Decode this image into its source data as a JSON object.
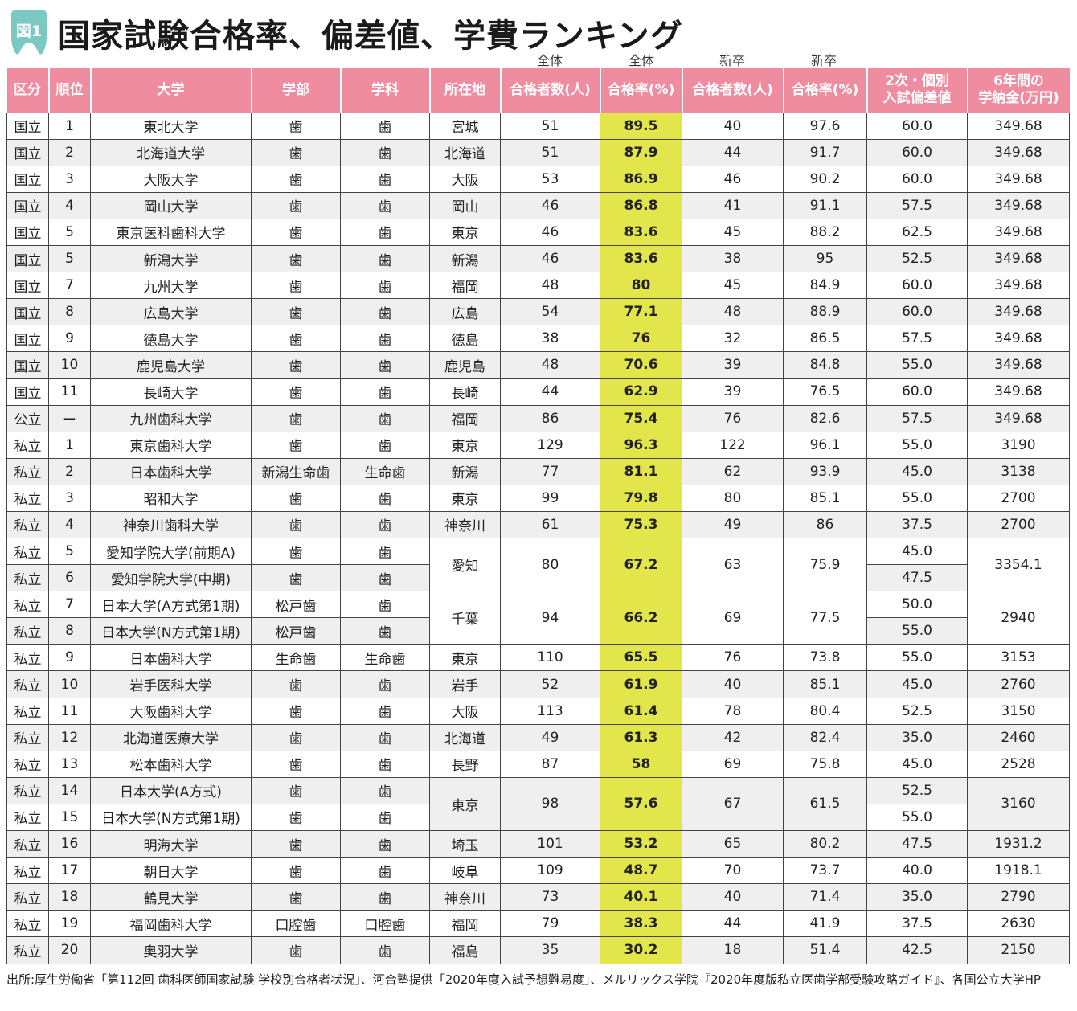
{
  "header": {
    "badge": "図1",
    "title": "国家試験合格率、偏差値、学費ランキング"
  },
  "subheaders": {
    "all1": "全体",
    "all2": "全体",
    "new1": "新卒",
    "new2": "新卒"
  },
  "columns": [
    "区分",
    "順位",
    "大学",
    "学部",
    "学科",
    "所在地",
    "合格者数(人)",
    "合格率(%)",
    "合格者数(人)",
    "合格率(%)",
    "2次・個別|入試偏差値",
    "6年間の|学納金(万円)"
  ],
  "rows": [
    {
      "kubun": "国立",
      "rank": "1",
      "univ": "東北大学",
      "fac": "歯",
      "dept": "歯",
      "loc": "宮城",
      "pass": "51",
      "rate": "89.5",
      "npass": "40",
      "nrate": "97.6",
      "dev": "60.0",
      "fee": "349.68"
    },
    {
      "kubun": "国立",
      "rank": "2",
      "univ": "北海道大学",
      "fac": "歯",
      "dept": "歯",
      "loc": "北海道",
      "pass": "51",
      "rate": "87.9",
      "npass": "44",
      "nrate": "91.7",
      "dev": "60.0",
      "fee": "349.68"
    },
    {
      "kubun": "国立",
      "rank": "3",
      "univ": "大阪大学",
      "fac": "歯",
      "dept": "歯",
      "loc": "大阪",
      "pass": "53",
      "rate": "86.9",
      "npass": "46",
      "nrate": "90.2",
      "dev": "60.0",
      "fee": "349.68"
    },
    {
      "kubun": "国立",
      "rank": "4",
      "univ": "岡山大学",
      "fac": "歯",
      "dept": "歯",
      "loc": "岡山",
      "pass": "46",
      "rate": "86.8",
      "npass": "41",
      "nrate": "91.1",
      "dev": "57.5",
      "fee": "349.68"
    },
    {
      "kubun": "国立",
      "rank": "5",
      "univ": "東京医科歯科大学",
      "fac": "歯",
      "dept": "歯",
      "loc": "東京",
      "pass": "46",
      "rate": "83.6",
      "npass": "45",
      "nrate": "88.2",
      "dev": "62.5",
      "fee": "349.68"
    },
    {
      "kubun": "国立",
      "rank": "5",
      "univ": "新潟大学",
      "fac": "歯",
      "dept": "歯",
      "loc": "新潟",
      "pass": "46",
      "rate": "83.6",
      "npass": "38",
      "nrate": "95",
      "dev": "52.5",
      "fee": "349.68"
    },
    {
      "kubun": "国立",
      "rank": "7",
      "univ": "九州大学",
      "fac": "歯",
      "dept": "歯",
      "loc": "福岡",
      "pass": "48",
      "rate": "80",
      "npass": "45",
      "nrate": "84.9",
      "dev": "60.0",
      "fee": "349.68"
    },
    {
      "kubun": "国立",
      "rank": "8",
      "univ": "広島大学",
      "fac": "歯",
      "dept": "歯",
      "loc": "広島",
      "pass": "54",
      "rate": "77.1",
      "npass": "48",
      "nrate": "88.9",
      "dev": "60.0",
      "fee": "349.68"
    },
    {
      "kubun": "国立",
      "rank": "9",
      "univ": "徳島大学",
      "fac": "歯",
      "dept": "歯",
      "loc": "徳島",
      "pass": "38",
      "rate": "76",
      "npass": "32",
      "nrate": "86.5",
      "dev": "57.5",
      "fee": "349.68"
    },
    {
      "kubun": "国立",
      "rank": "10",
      "univ": "鹿児島大学",
      "fac": "歯",
      "dept": "歯",
      "loc": "鹿児島",
      "pass": "48",
      "rate": "70.6",
      "npass": "39",
      "nrate": "84.8",
      "dev": "55.0",
      "fee": "349.68"
    },
    {
      "kubun": "国立",
      "rank": "11",
      "univ": "長崎大学",
      "fac": "歯",
      "dept": "歯",
      "loc": "長崎",
      "pass": "44",
      "rate": "62.9",
      "npass": "39",
      "nrate": "76.5",
      "dev": "60.0",
      "fee": "349.68"
    },
    {
      "kubun": "公立",
      "rank": "ー",
      "univ": "九州歯科大学",
      "fac": "歯",
      "dept": "歯",
      "loc": "福岡",
      "pass": "86",
      "rate": "75.4",
      "npass": "76",
      "nrate": "82.6",
      "dev": "57.5",
      "fee": "349.68"
    },
    {
      "kubun": "私立",
      "rank": "1",
      "univ": "東京歯科大学",
      "fac": "歯",
      "dept": "歯",
      "loc": "東京",
      "pass": "129",
      "rate": "96.3",
      "npass": "122",
      "nrate": "96.1",
      "dev": "55.0",
      "fee": "3190"
    },
    {
      "kubun": "私立",
      "rank": "2",
      "univ": "日本歯科大学",
      "fac": "新潟生命歯",
      "dept": "生命歯",
      "loc": "新潟",
      "pass": "77",
      "rate": "81.1",
      "npass": "62",
      "nrate": "93.9",
      "dev": "45.0",
      "fee": "3138"
    },
    {
      "kubun": "私立",
      "rank": "3",
      "univ": "昭和大学",
      "fac": "歯",
      "dept": "歯",
      "loc": "東京",
      "pass": "99",
      "rate": "79.8",
      "npass": "80",
      "nrate": "85.1",
      "dev": "55.0",
      "fee": "2700"
    },
    {
      "kubun": "私立",
      "rank": "4",
      "univ": "神奈川歯科大学",
      "fac": "歯",
      "dept": "歯",
      "loc": "神奈川",
      "pass": "61",
      "rate": "75.3",
      "npass": "49",
      "nrate": "86",
      "dev": "37.5",
      "fee": "2700"
    },
    {
      "kubun": "私立",
      "rank": "5",
      "univ": "愛知学院大学(前期A)",
      "fac": "歯",
      "dept": "歯",
      "loc": "愛知",
      "pass": "80",
      "rate": "67.2",
      "npass": "63",
      "nrate": "75.9",
      "dev": "45.0",
      "fee": "3354.1",
      "span": 2
    },
    {
      "kubun": "私立",
      "rank": "6",
      "univ": "愛知学院大学(中期)",
      "fac": "歯",
      "dept": "歯",
      "dev": "47.5",
      "cont": true
    },
    {
      "kubun": "私立",
      "rank": "7",
      "univ": "日本大学(A方式第1期)",
      "fac": "松戸歯",
      "dept": "歯",
      "loc": "千葉",
      "pass": "94",
      "rate": "66.2",
      "npass": "69",
      "nrate": "77.5",
      "dev": "50.0",
      "fee": "2940",
      "span": 2
    },
    {
      "kubun": "私立",
      "rank": "8",
      "univ": "日本大学(N方式第1期)",
      "fac": "松戸歯",
      "dept": "歯",
      "dev": "55.0",
      "cont": true
    },
    {
      "kubun": "私立",
      "rank": "9",
      "univ": "日本歯科大学",
      "fac": "生命歯",
      "dept": "生命歯",
      "loc": "東京",
      "pass": "110",
      "rate": "65.5",
      "npass": "76",
      "nrate": "73.8",
      "dev": "55.0",
      "fee": "3153"
    },
    {
      "kubun": "私立",
      "rank": "10",
      "univ": "岩手医科大学",
      "fac": "歯",
      "dept": "歯",
      "loc": "岩手",
      "pass": "52",
      "rate": "61.9",
      "npass": "40",
      "nrate": "85.1",
      "dev": "45.0",
      "fee": "2760"
    },
    {
      "kubun": "私立",
      "rank": "11",
      "univ": "大阪歯科大学",
      "fac": "歯",
      "dept": "歯",
      "loc": "大阪",
      "pass": "113",
      "rate": "61.4",
      "npass": "78",
      "nrate": "80.4",
      "dev": "52.5",
      "fee": "3150"
    },
    {
      "kubun": "私立",
      "rank": "12",
      "univ": "北海道医療大学",
      "fac": "歯",
      "dept": "歯",
      "loc": "北海道",
      "pass": "49",
      "rate": "61.3",
      "npass": "42",
      "nrate": "82.4",
      "dev": "35.0",
      "fee": "2460"
    },
    {
      "kubun": "私立",
      "rank": "13",
      "univ": "松本歯科大学",
      "fac": "歯",
      "dept": "歯",
      "loc": "長野",
      "pass": "87",
      "rate": "58",
      "npass": "69",
      "nrate": "75.8",
      "dev": "45.0",
      "fee": "2528"
    },
    {
      "kubun": "私立",
      "rank": "14",
      "univ": "日本大学(A方式)",
      "fac": "歯",
      "dept": "歯",
      "loc": "東京",
      "pass": "98",
      "rate": "57.6",
      "npass": "67",
      "nrate": "61.5",
      "dev": "52.5",
      "fee": "3160",
      "span": 2
    },
    {
      "kubun": "私立",
      "rank": "15",
      "univ": "日本大学(N方式第1期)",
      "fac": "歯",
      "dept": "歯",
      "dev": "55.0",
      "cont": true
    },
    {
      "kubun": "私立",
      "rank": "16",
      "univ": "明海大学",
      "fac": "歯",
      "dept": "歯",
      "loc": "埼玉",
      "pass": "101",
      "rate": "53.2",
      "npass": "65",
      "nrate": "80.2",
      "dev": "47.5",
      "fee": "1931.2"
    },
    {
      "kubun": "私立",
      "rank": "17",
      "univ": "朝日大学",
      "fac": "歯",
      "dept": "歯",
      "loc": "岐阜",
      "pass": "109",
      "rate": "48.7",
      "npass": "70",
      "nrate": "73.7",
      "dev": "40.0",
      "fee": "1918.1"
    },
    {
      "kubun": "私立",
      "rank": "18",
      "univ": "鶴見大学",
      "fac": "歯",
      "dept": "歯",
      "loc": "神奈川",
      "pass": "73",
      "rate": "40.1",
      "npass": "40",
      "nrate": "71.4",
      "dev": "35.0",
      "fee": "2790"
    },
    {
      "kubun": "私立",
      "rank": "19",
      "univ": "福岡歯科大学",
      "fac": "口腔歯",
      "dept": "口腔歯",
      "loc": "福岡",
      "pass": "79",
      "rate": "38.3",
      "npass": "44",
      "nrate": "41.9",
      "dev": "37.5",
      "fee": "2630"
    },
    {
      "kubun": "私立",
      "rank": "20",
      "univ": "奥羽大学",
      "fac": "歯",
      "dept": "歯",
      "loc": "福島",
      "pass": "35",
      "rate": "30.2",
      "npass": "18",
      "nrate": "51.4",
      "dev": "42.5",
      "fee": "2150"
    }
  ],
  "source": "出所:厚生労働省「第112回 歯科医師国家試験 学校別合格者状況」、河合塾提供「2020年度入試予想難易度」、メルリックス学院『2020年度版私立医歯学部受験攻略ガイド』、各国公立大学HP",
  "colors": {
    "header_pink": "#f08ca0",
    "badge_teal": "#7cc9c4",
    "rate_yellow": "#e3e64a",
    "alt_row": "#efefef"
  }
}
